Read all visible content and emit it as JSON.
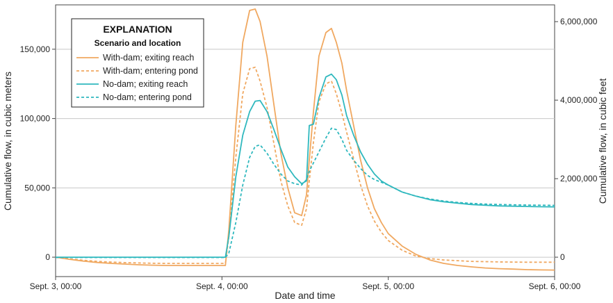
{
  "chart_data": {
    "type": "line",
    "title": "",
    "xlabel": "Date and time",
    "ylabel": "Cumulative flow, in cubic meters",
    "y2label": "Cumulative flow, in cubic feet",
    "xlim": [
      0,
      72
    ],
    "ylim": [
      -14000,
      182000
    ],
    "y2lim": [
      -494406,
      6427276
    ],
    "grid": true,
    "x_ticks": [
      0,
      24,
      48,
      72
    ],
    "x_tick_labels": [
      "Sept. 3, 00:00",
      "Sept. 4, 00:00",
      "Sept. 5, 00:00",
      "Sept. 6, 00:00"
    ],
    "y_ticks": [
      0,
      50000,
      100000,
      150000
    ],
    "y_tick_labels": [
      "0",
      "50,000",
      "100,000",
      "150,000"
    ],
    "y2_ticks": [
      0,
      2000000,
      4000000,
      6000000
    ],
    "y2_tick_labels": [
      "0",
      "2,000,000",
      "4,000,000",
      "6,000,000"
    ],
    "legend": {
      "title": "EXPLANATION",
      "subtitle": "Scenario and location",
      "placement": "top-left"
    },
    "series": [
      {
        "name": "With-dam; exiting reach",
        "color": "#F0A860",
        "dash": "solid",
        "x": [
          0,
          2,
          4,
          6,
          8,
          10,
          12,
          14,
          16,
          18,
          20,
          22,
          24,
          24.5,
          25,
          26,
          27,
          28,
          28.8,
          29.5,
          30.5,
          31.5,
          32.5,
          33.5,
          34.5,
          35.5,
          36.2,
          36.6,
          37.2,
          38,
          39,
          39.8,
          40.5,
          41.3,
          42,
          43,
          44,
          45,
          46,
          47,
          48,
          50,
          52,
          54,
          56,
          58,
          60,
          62,
          64,
          66,
          68,
          70,
          72
        ],
        "y": [
          0,
          -1500,
          -2800,
          -3800,
          -4500,
          -5000,
          -5500,
          -5800,
          -6000,
          -6000,
          -6000,
          -6000,
          -6000,
          -6000,
          20000,
          95000,
          155000,
          178000,
          179000,
          170000,
          145000,
          110000,
          75000,
          50000,
          32000,
          30000,
          45000,
          70000,
          105000,
          145000,
          162000,
          165000,
          155000,
          140000,
          120000,
          95000,
          70000,
          50000,
          35000,
          25000,
          17000,
          8000,
          2000,
          -2000,
          -4500,
          -6000,
          -7000,
          -7800,
          -8300,
          -8600,
          -9000,
          -9200,
          -9300
        ]
      },
      {
        "name": "With-dam; entering pond",
        "color": "#F0A860",
        "dash": "dashed",
        "x": [
          0,
          2,
          4,
          6,
          8,
          10,
          12,
          14,
          16,
          18,
          20,
          22,
          24,
          24.5,
          25,
          26,
          27,
          28,
          28.8,
          29.5,
          30.5,
          31.5,
          32.5,
          33.5,
          34.5,
          35.5,
          36.2,
          36.6,
          37.2,
          38,
          39,
          39.8,
          40.5,
          41.3,
          42,
          43,
          44,
          45,
          46,
          47,
          48,
          50,
          52,
          54,
          56,
          58,
          60,
          62,
          64,
          66,
          68,
          70,
          72
        ],
        "y": [
          0,
          -1200,
          -2200,
          -3000,
          -3500,
          -3900,
          -4200,
          -4400,
          -4500,
          -4500,
          -4500,
          -4500,
          -4500,
          -4500,
          15000,
          72000,
          118000,
          136000,
          137000,
          127000,
          108000,
          82000,
          55000,
          37000,
          25000,
          23000,
          35000,
          55000,
          83000,
          112000,
          125000,
          127000,
          118000,
          104000,
          90000,
          71000,
          52000,
          37000,
          26000,
          18000,
          12000,
          5000,
          800,
          -1000,
          -2000,
          -2500,
          -3000,
          -3200,
          -3400,
          -3500,
          -3600,
          -3600,
          -3600
        ]
      },
      {
        "name": "No-dam; exiting reach",
        "color": "#2FB8BE",
        "dash": "solid",
        "x": [
          0,
          2,
          4,
          6,
          8,
          10,
          12,
          14,
          16,
          18,
          20,
          22,
          24,
          24.5,
          25,
          26,
          27,
          28,
          28.8,
          29.5,
          30.5,
          31.5,
          32.5,
          33.5,
          34.5,
          35.5,
          36.2,
          36.6,
          37.2,
          38,
          39,
          39.8,
          40.5,
          41.3,
          42,
          43,
          44,
          45,
          46,
          47,
          48,
          50,
          52,
          54,
          56,
          58,
          60,
          62,
          64,
          66,
          68,
          70,
          72
        ],
        "y": [
          0,
          0,
          0,
          0,
          0,
          0,
          0,
          0,
          0,
          0,
          0,
          0,
          0,
          0,
          15000,
          58000,
          88000,
          105000,
          112500,
          113000,
          105000,
          92000,
          78000,
          65000,
          58000,
          53000,
          55000,
          95000,
          96000,
          115000,
          130000,
          132000,
          128000,
          117000,
          102000,
          88000,
          76000,
          67000,
          60000,
          55000,
          52000,
          47000,
          44000,
          41500,
          40000,
          39000,
          38000,
          37500,
          37000,
          36800,
          36600,
          36400,
          36300
        ]
      },
      {
        "name": "No-dam; entering pond",
        "color": "#2FB8BE",
        "dash": "dashed",
        "x": [
          0,
          2,
          4,
          6,
          8,
          10,
          12,
          14,
          16,
          18,
          20,
          22,
          24,
          24.5,
          25,
          26,
          27,
          28,
          28.8,
          29.5,
          30.5,
          31.5,
          32.5,
          33.5,
          34.5,
          35.5,
          36.2,
          36.6,
          37.2,
          38,
          39,
          39.8,
          40.5,
          41.3,
          42,
          43,
          44,
          45,
          46,
          47,
          48,
          50,
          52,
          54,
          56,
          58,
          60,
          62,
          64,
          66,
          68,
          70,
          72
        ],
        "y": [
          -200,
          -200,
          -200,
          -200,
          -200,
          -200,
          -200,
          -200,
          -200,
          -200,
          -200,
          -200,
          -200,
          -200,
          3000,
          25000,
          52000,
          72000,
          80000,
          81000,
          75000,
          67000,
          60000,
          55000,
          53000,
          52000,
          56000,
          62000,
          68000,
          76000,
          86000,
          93000,
          92000,
          85000,
          77000,
          70000,
          64000,
          59000,
          56000,
          54000,
          52000,
          47000,
          44000,
          42000,
          40500,
          39500,
          38800,
          38300,
          38000,
          37800,
          37600,
          37500,
          37400
        ]
      }
    ]
  }
}
